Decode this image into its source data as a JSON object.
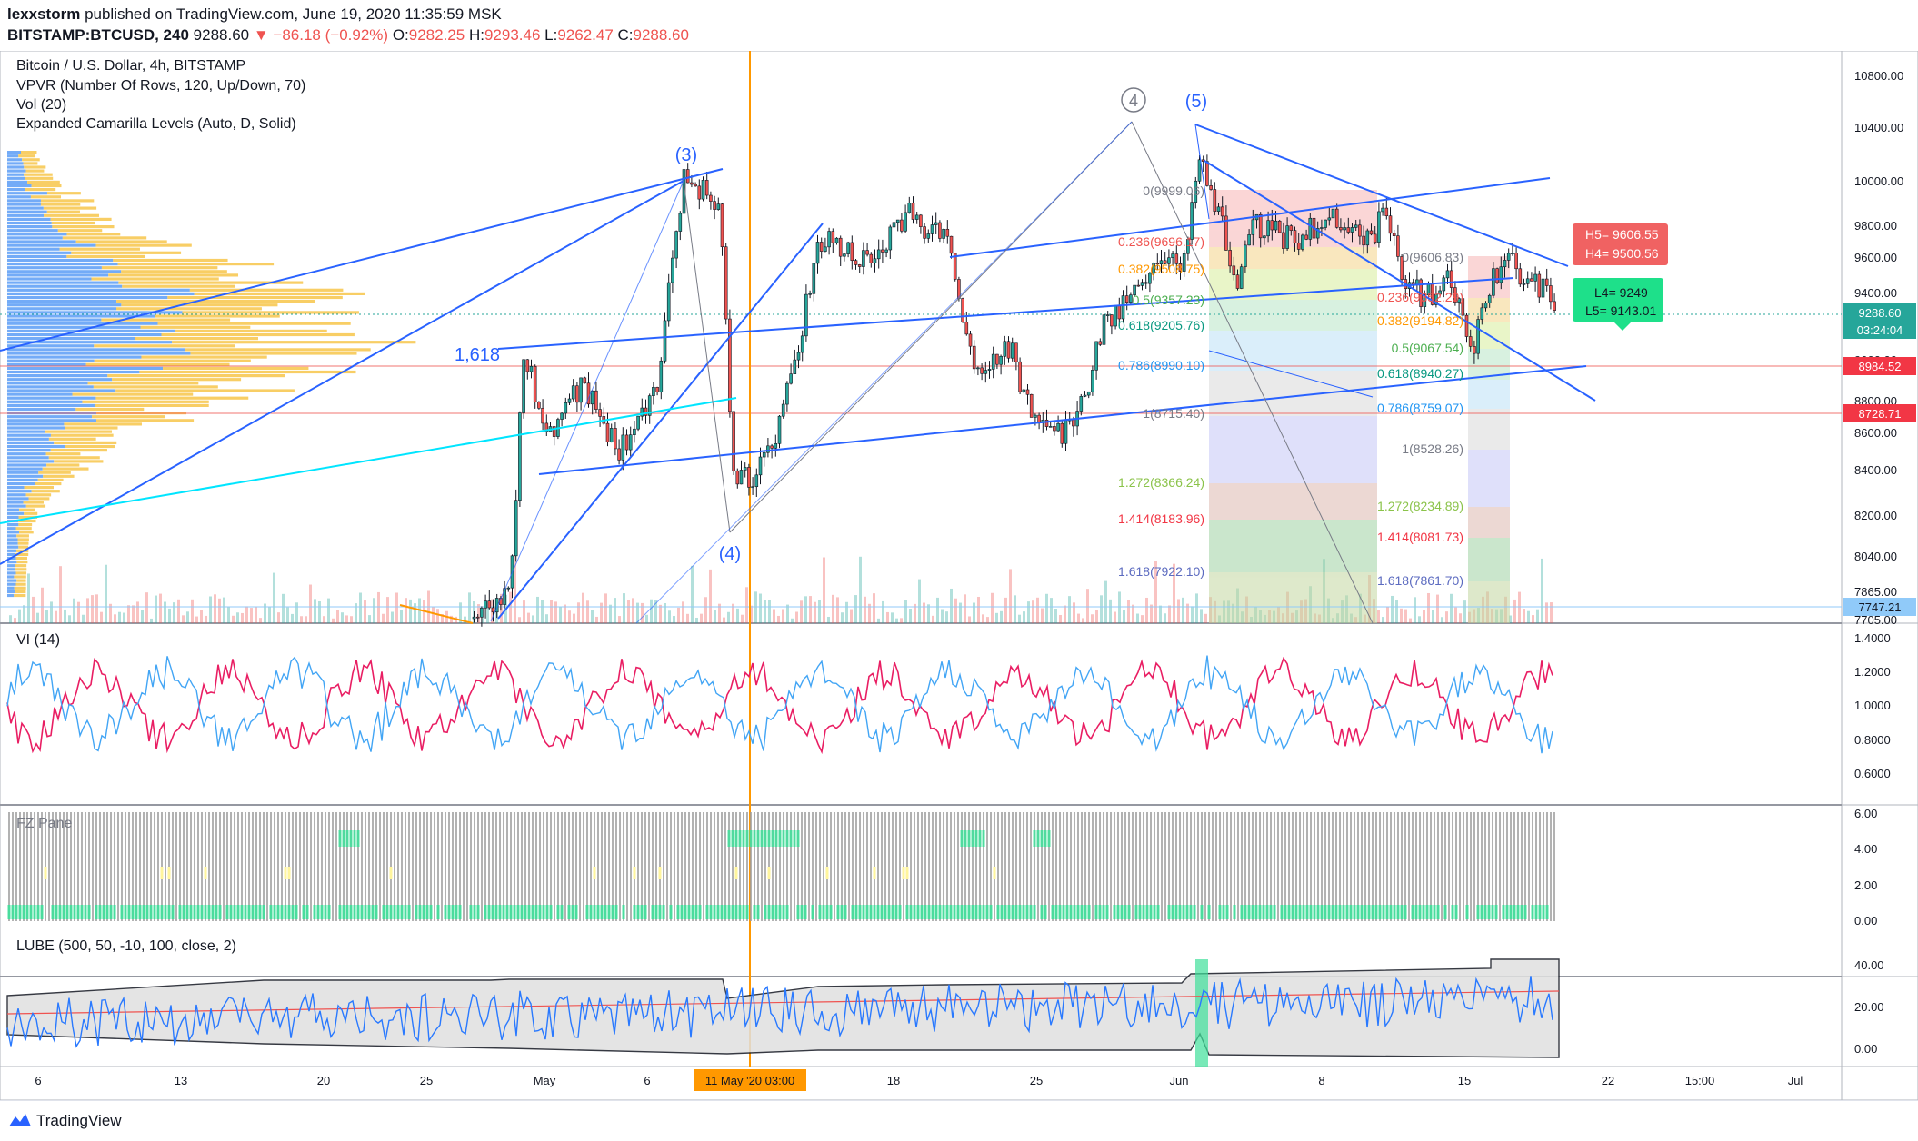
{
  "header": {
    "author": "lexxstorm",
    "published_text": "published on TradingView.com, June 19, 2020 11:35:59 MSK",
    "symbol": "BITSTAMP:BTCUSD, 240",
    "last": "9288.60",
    "change": "−86.18 (−0.92%)",
    "o_label": "O:",
    "o_value": "9282.25",
    "h_label": "H:",
    "h_value": "9293.46",
    "l_label": "L:",
    "l_value": "9262.47",
    "c_label": "C:",
    "c_value": "9288.60"
  },
  "legend": {
    "title": "Bitcoin / U.S. Dollar, 4h, BITSTAMP",
    "ind1": "VPVR (Number Of Rows, 120, Up/Down, 70)",
    "ind2": "Vol (20)",
    "ind3": "Expanded Camarilla Levels (Auto, D, Solid)"
  },
  "panes": {
    "vi": "VI (14)",
    "fz": "FZ Pane",
    "lube": "LUBE (500, 50, -10, 100, close, 2)"
  },
  "price_axis": [
    "10800.00",
    "10400.00",
    "10000.00",
    "9800.00",
    "9600.00",
    "9400.00",
    "9200.00",
    "9000.00",
    "8800.00",
    "8600.00",
    "8400.00",
    "8200.00",
    "8040.00",
    "7865.00",
    "7705.00"
  ],
  "price_badges": {
    "last": "9288.60",
    "countdown": "03:24:04",
    "level1": "8984.52",
    "level2": "8728.71",
    "level3": "7747.21"
  },
  "vi_axis": [
    "1.4000",
    "1.2000",
    "1.0000",
    "0.8000",
    "0.6000"
  ],
  "fz_axis": [
    "6.00",
    "4.00",
    "2.00",
    "0.00"
  ],
  "lube_axis": [
    "40.00",
    "20.00",
    "0.00"
  ],
  "time_axis": [
    "6",
    "13",
    "20",
    "25",
    "May",
    "6",
    "11 May '20  03:00",
    "18",
    "25",
    "Jun",
    "8",
    "15",
    "22",
    "15:00",
    "Jul"
  ],
  "waves": [
    "(3)",
    "(4)",
    "(5)",
    "4",
    "1,618"
  ],
  "fib_left": [
    "0(9999.06)",
    "0.236(9696.17)",
    "0.382(9508.75)",
    "0.5(9357.23)",
    "0.618(9205.76)",
    "0.786(8990.10)",
    "1(8715.40)",
    "1.272(8366.24)",
    "1.414(8183.96)",
    "1.618(7922.10)"
  ],
  "fib_right": [
    "0(9606.83)",
    "0.236(9352.29)",
    "0.382(9194.82)",
    "0.5(9067.54)",
    "0.618(8940.27)",
    "0.786(8759.07)",
    "1(8528.26)",
    "1.272(8234.89)",
    "1.414(8081.73)",
    "1.618(7861.70)"
  ],
  "camarilla": {
    "h5": "H5= 9606.55",
    "h4": "H4= 9500.56",
    "l4": "L4= 9249",
    "l5": "L5= 9143.01"
  },
  "footer": {
    "brand": "TradingView"
  },
  "colors": {
    "up": "#26a69a",
    "down": "#ef5350",
    "blue": "#2962ff",
    "orange": "#ff9800"
  }
}
